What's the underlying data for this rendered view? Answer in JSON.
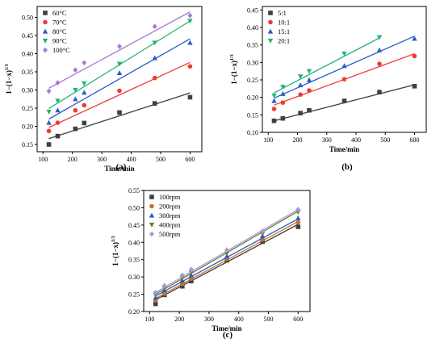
{
  "chart_data": [
    {
      "type": "scatter",
      "panel_label": "(a)",
      "xlabel": "Time/min",
      "ylabel": "1−(1−x)",
      "ylabel_sup": "1/3",
      "xlim": [
        80,
        640
      ],
      "ylim": [
        0.13,
        0.53
      ],
      "xticks": [
        100,
        200,
        300,
        400,
        500,
        600
      ],
      "yticks": [
        0.15,
        0.2,
        0.25,
        0.3,
        0.35,
        0.4,
        0.45,
        0.5
      ],
      "legend_position": "top-left",
      "x": [
        120,
        150,
        210,
        240,
        360,
        480,
        600
      ],
      "series": [
        {
          "name": "60°C",
          "color": "#404040",
          "marker": "square",
          "values": [
            0.15,
            0.173,
            0.193,
            0.209,
            0.238,
            0.263,
            0.28
          ],
          "fit": [
            0.166,
            0.292
          ]
        },
        {
          "name": "70°C",
          "color": "#ef3b36",
          "marker": "circle",
          "values": [
            0.187,
            0.21,
            0.244,
            0.258,
            0.298,
            0.333,
            0.365
          ],
          "fit": [
            0.197,
            0.376
          ]
        },
        {
          "name": "80°C",
          "color": "#2a5cc6",
          "marker": "triangle-up",
          "values": [
            0.21,
            0.244,
            0.275,
            0.293,
            0.347,
            0.388,
            0.43
          ],
          "fit": [
            0.22,
            0.441
          ]
        },
        {
          "name": "90°C",
          "color": "#22b573",
          "marker": "triangle-down",
          "values": [
            0.24,
            0.27,
            0.3,
            0.318,
            0.372,
            0.43,
            0.49
          ],
          "fit": [
            0.249,
            0.49
          ]
        },
        {
          "name": "100°C",
          "color": "#a97bd6",
          "marker": "diamond",
          "values": [
            0.297,
            0.32,
            0.355,
            0.375,
            0.42,
            0.475,
            0.505
          ],
          "fit": [
            0.305,
            0.515
          ]
        }
      ]
    },
    {
      "type": "scatter",
      "panel_label": "(b)",
      "xlabel": "Time/min",
      "ylabel": "1−(1−x)",
      "ylabel_sup": "1/3",
      "xlim": [
        80,
        640
      ],
      "ylim": [
        0.1,
        0.46
      ],
      "xticks": [
        100,
        200,
        300,
        400,
        500,
        600
      ],
      "yticks": [
        0.1,
        0.15,
        0.2,
        0.25,
        0.3,
        0.35,
        0.4,
        0.45
      ],
      "legend_position": "top-left",
      "x": [
        120,
        150,
        210,
        240,
        360,
        480,
        600
      ],
      "series": [
        {
          "name": "5:1",
          "color": "#404040",
          "marker": "square",
          "x": [
            120,
            150,
            210,
            240,
            360,
            480,
            600
          ],
          "values": [
            0.133,
            0.14,
            0.155,
            0.163,
            0.19,
            0.215,
            0.232
          ],
          "fit": [
            0.133,
            0.236
          ]
        },
        {
          "name": "10:1",
          "color": "#ef3b36",
          "marker": "circle",
          "x": [
            120,
            150,
            210,
            240,
            360,
            480,
            600
          ],
          "values": [
            0.167,
            0.185,
            0.208,
            0.22,
            0.252,
            0.296,
            0.318
          ],
          "fit": [
            0.178,
            0.325
          ]
        },
        {
          "name": "15:1",
          "color": "#2a5cc6",
          "marker": "triangle-up",
          "x": [
            120,
            150,
            210,
            240,
            360,
            480,
            600
          ],
          "values": [
            0.19,
            0.21,
            0.235,
            0.25,
            0.29,
            0.335,
            0.368
          ],
          "fit": [
            0.198,
            0.375
          ]
        },
        {
          "name": "20:1",
          "color": "#22b573",
          "marker": "triangle-down",
          "x": [
            120,
            150,
            210,
            240,
            360,
            480
          ],
          "values": [
            0.205,
            0.23,
            0.26,
            0.275,
            0.325,
            0.372
          ],
          "fit_x": [
            120,
            480
          ],
          "fit": [
            0.213,
            0.37
          ]
        }
      ]
    },
    {
      "type": "scatter",
      "panel_label": "(c)",
      "xlabel": "Time/min",
      "ylabel": "1−(1−x)",
      "ylabel_sup": "1/3",
      "xlim": [
        80,
        640
      ],
      "ylim": [
        0.2,
        0.55
      ],
      "xticks": [
        100,
        200,
        300,
        400,
        500,
        600
      ],
      "yticks": [
        0.2,
        0.25,
        0.3,
        0.35,
        0.4,
        0.45,
        0.5,
        0.55
      ],
      "legend_position": "top-left",
      "x": [
        120,
        150,
        210,
        240,
        360,
        480,
        600
      ],
      "series": [
        {
          "name": "100rpm",
          "color": "#404040",
          "marker": "square",
          "values": [
            0.222,
            0.248,
            0.273,
            0.288,
            0.348,
            0.402,
            0.445
          ],
          "fit": [
            0.234,
            0.452
          ]
        },
        {
          "name": "200rpm",
          "color": "#c8702a",
          "marker": "circle",
          "values": [
            0.232,
            0.252,
            0.28,
            0.295,
            0.352,
            0.408,
            0.458
          ],
          "fit": [
            0.238,
            0.46
          ]
        },
        {
          "name": "300rpm",
          "color": "#2a5cc6",
          "marker": "triangle-up",
          "values": [
            0.24,
            0.262,
            0.29,
            0.305,
            0.36,
            0.418,
            0.47
          ],
          "fit": [
            0.245,
            0.468
          ]
        },
        {
          "name": "400rpm",
          "color": "#6b7d2e",
          "marker": "triangle-down",
          "values": [
            0.248,
            0.268,
            0.298,
            0.312,
            0.368,
            0.425,
            0.488
          ],
          "fit": [
            0.25,
            0.49
          ]
        },
        {
          "name": "500rpm",
          "color": "#a79ae0",
          "marker": "diamond",
          "values": [
            0.255,
            0.275,
            0.305,
            0.322,
            0.378,
            0.432,
            0.495
          ],
          "fit": [
            0.255,
            0.495
          ]
        }
      ]
    }
  ]
}
